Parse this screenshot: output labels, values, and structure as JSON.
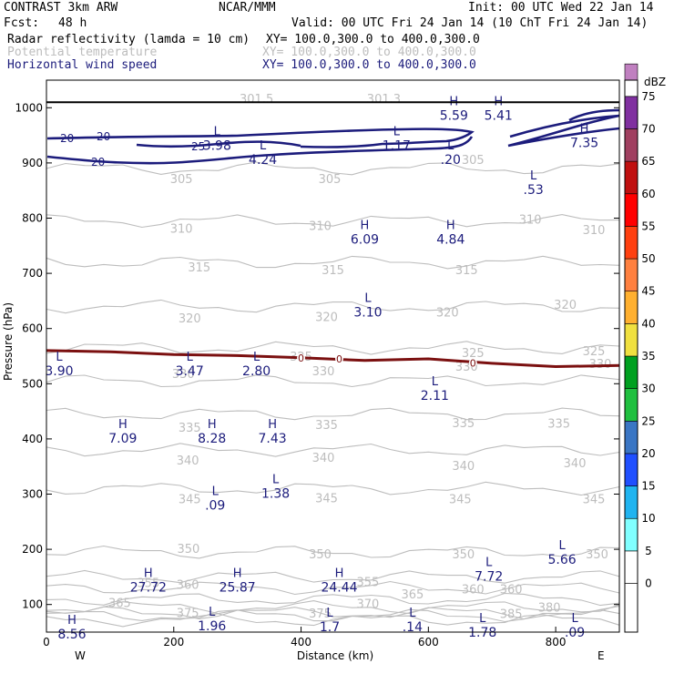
{
  "header": {
    "model": "CONTRAST  3km ARW",
    "org": "NCAR/MMM",
    "init": "Init: 00 UTC Wed 22 Jan 14",
    "fcst_label": "Fcst:",
    "fcst_value": "48 h",
    "valid": "Valid: 00 UTC Fri 24 Jan 14 (10 ChT Fri 24 Jan 14)",
    "fields": [
      {
        "name": "Radar reflectivity (lamda = 10 cm)",
        "xy": "XY= 100.0,300.0 to 400.0,300.0",
        "color": "#000000"
      },
      {
        "name": "Potential temperature",
        "xy": "XY= 100.0,300.0 to 400.0,300.0",
        "color": "#bdbdbd"
      },
      {
        "name": "Horizontal wind speed",
        "xy": "XY= 100.0,300.0 to 400.0,300.0",
        "color": "#1c1c7c"
      }
    ]
  },
  "chart_data": {
    "type": "contour cross-section",
    "xlabel": "Distance (km)",
    "ylabel": "Pressure (hPa)",
    "xlim": [
      0,
      900
    ],
    "ylim": [
      1050,
      50
    ],
    "x_ticks": [
      0,
      200,
      400,
      600,
      800
    ],
    "y_ticks": [
      100,
      200,
      300,
      400,
      500,
      600,
      700,
      800,
      900,
      1000
    ],
    "direction_labels": {
      "left": "W",
      "right": "E"
    },
    "colorbar": {
      "unit": "dBZ",
      "levels": [
        0,
        5,
        10,
        15,
        20,
        25,
        30,
        35,
        40,
        45,
        50,
        55,
        60,
        65,
        70,
        75
      ],
      "colors": [
        "#ffffff",
        "#80ffff",
        "#20b4f0",
        "#2050ff",
        "#3a76c4",
        "#20c040",
        "#00a020",
        "#f0e040",
        "#ffb030",
        "#ff8040",
        "#ff4010",
        "#ff0000",
        "#c01010",
        "#a04060",
        "#8030a0",
        "#c080c0"
      ]
    },
    "theta_isentropes": [
      {
        "value": 305,
        "p": 890
      },
      {
        "value": 310,
        "p": 795
      },
      {
        "value": 315,
        "p": 720
      },
      {
        "value": 320,
        "p": 640
      },
      {
        "value": 325,
        "p": 565
      },
      {
        "value": 330,
        "p": 505
      },
      {
        "value": 335,
        "p": 445
      },
      {
        "value": 340,
        "p": 380
      },
      {
        "value": 345,
        "p": 310
      },
      {
        "value": 350,
        "p": 195
      },
      {
        "value": 355,
        "p": 150
      },
      {
        "value": 360,
        "p": 130
      },
      {
        "value": 365,
        "p": 110
      },
      {
        "value": 370,
        "p": 95
      },
      {
        "value": 375,
        "p": 85
      },
      {
        "value": 380,
        "p": 80
      },
      {
        "value": 385,
        "p": 72
      }
    ],
    "theta_labels": [
      {
        "text": "305",
        "x": 212,
        "p": 870
      },
      {
        "text": "305",
        "x": 445,
        "p": 870
      },
      {
        "text": "305",
        "x": 670,
        "p": 905
      },
      {
        "text": "310",
        "x": 212,
        "p": 780
      },
      {
        "text": "310",
        "x": 430,
        "p": 785
      },
      {
        "text": "310",
        "x": 760,
        "p": 797
      },
      {
        "text": "310",
        "x": 860,
        "p": 778
      },
      {
        "text": "315",
        "x": 240,
        "p": 710
      },
      {
        "text": "315",
        "x": 450,
        "p": 705
      },
      {
        "text": "315",
        "x": 660,
        "p": 705
      },
      {
        "text": "320",
        "x": 225,
        "p": 618
      },
      {
        "text": "320",
        "x": 440,
        "p": 620
      },
      {
        "text": "320",
        "x": 630,
        "p": 628
      },
      {
        "text": "320",
        "x": 815,
        "p": 642
      },
      {
        "text": "325",
        "x": 400,
        "p": 548
      },
      {
        "text": "325",
        "x": 670,
        "p": 555
      },
      {
        "text": "325",
        "x": 860,
        "p": 558
      },
      {
        "text": "330",
        "x": 215,
        "p": 517
      },
      {
        "text": "330",
        "x": 435,
        "p": 522
      },
      {
        "text": "330",
        "x": 660,
        "p": 530
      },
      {
        "text": "330",
        "x": 870,
        "p": 535
      },
      {
        "text": "335",
        "x": 225,
        "p": 420
      },
      {
        "text": "335",
        "x": 440,
        "p": 425
      },
      {
        "text": "335",
        "x": 655,
        "p": 428
      },
      {
        "text": "335",
        "x": 805,
        "p": 427
      },
      {
        "text": "340",
        "x": 222,
        "p": 360
      },
      {
        "text": "340",
        "x": 435,
        "p": 365
      },
      {
        "text": "340",
        "x": 655,
        "p": 350
      },
      {
        "text": "340",
        "x": 830,
        "p": 355
      },
      {
        "text": "345",
        "x": 225,
        "p": 290
      },
      {
        "text": "345",
        "x": 440,
        "p": 292
      },
      {
        "text": "345",
        "x": 650,
        "p": 290
      },
      {
        "text": "345",
        "x": 860,
        "p": 290
      },
      {
        "text": "350",
        "x": 223,
        "p": 200
      },
      {
        "text": "350",
        "x": 430,
        "p": 190
      },
      {
        "text": "350",
        "x": 655,
        "p": 190
      },
      {
        "text": "350",
        "x": 865,
        "p": 190
      },
      {
        "text": "355",
        "x": 160,
        "p": 138
      },
      {
        "text": "355",
        "x": 505,
        "p": 140
      },
      {
        "text": "360",
        "x": 222,
        "p": 135
      },
      {
        "text": "360",
        "x": 670,
        "p": 127
      },
      {
        "text": "360",
        "x": 730,
        "p": 127
      },
      {
        "text": "365",
        "x": 115,
        "p": 102
      },
      {
        "text": "365",
        "x": 575,
        "p": 118
      },
      {
        "text": "370",
        "x": 505,
        "p": 100
      },
      {
        "text": "375",
        "x": 222,
        "p": 84
      },
      {
        "text": "375",
        "x": 430,
        "p": 83
      },
      {
        "text": "380",
        "x": 790,
        "p": 94
      },
      {
        "text": "385",
        "x": 730,
        "p": 82
      }
    ],
    "freezing_level": {
      "label": "0",
      "points": [
        [
          0,
          560
        ],
        [
          100,
          558
        ],
        [
          200,
          553
        ],
        [
          300,
          551
        ],
        [
          400,
          547
        ],
        [
          500,
          542
        ],
        [
          600,
          545
        ],
        [
          700,
          537
        ],
        [
          800,
          531
        ],
        [
          900,
          533
        ]
      ]
    },
    "wind_speed_contours": [
      {
        "label": "20",
        "value": 20
      },
      {
        "label": "20",
        "value": 20
      },
      {
        "label": "20",
        "value": 20
      },
      {
        "label": "25",
        "value": 25
      }
    ],
    "extrema": [
      {
        "type": "H",
        "value": "8.56",
        "x": 40,
        "p": 65
      },
      {
        "type": "L",
        "value": "1.96",
        "x": 260,
        "p": 80
      },
      {
        "type": "L",
        "value": "1.7",
        "x": 445,
        "p": 78
      },
      {
        "type": "L",
        "value": ".14",
        "x": 575,
        "p": 78
      },
      {
        "type": "L",
        "value": "1.78",
        "x": 685,
        "p": 68
      },
      {
        "type": "L",
        "value": ".09",
        "x": 830,
        "p": 68
      },
      {
        "type": "H",
        "value": "27.72",
        "x": 160,
        "p": 150
      },
      {
        "type": "H",
        "value": "25.87",
        "x": 300,
        "p": 150
      },
      {
        "type": "H",
        "value": "24.44",
        "x": 460,
        "p": 150
      },
      {
        "type": "L",
        "value": "7.72",
        "x": 695,
        "p": 170
      },
      {
        "type": "L",
        "value": "5.66",
        "x": 810,
        "p": 200
      },
      {
        "type": "L",
        "value": ".09",
        "x": 265,
        "p": 298
      },
      {
        "type": "L",
        "value": "1.38",
        "x": 360,
        "p": 320
      },
      {
        "type": "H",
        "value": "7.09",
        "x": 120,
        "p": 420
      },
      {
        "type": "H",
        "value": "8.28",
        "x": 260,
        "p": 420
      },
      {
        "type": "H",
        "value": "7.43",
        "x": 355,
        "p": 420
      },
      {
        "type": "L",
        "value": "2.11",
        "x": 610,
        "p": 497
      },
      {
        "type": "L",
        "value": "3.90",
        "x": 20,
        "p": 542
      },
      {
        "type": "L",
        "value": "3.47",
        "x": 225,
        "p": 542
      },
      {
        "type": "L",
        "value": "2.80",
        "x": 330,
        "p": 542
      },
      {
        "type": "L",
        "value": "3.10",
        "x": 505,
        "p": 648
      },
      {
        "type": "H",
        "value": "6.09",
        "x": 500,
        "p": 780
      },
      {
        "type": "H",
        "value": "4.84",
        "x": 635,
        "p": 780
      },
      {
        "type": "L",
        "value": ".53",
        "x": 765,
        "p": 870
      },
      {
        "type": "L",
        "value": "3.98",
        "x": 268,
        "p": 950
      },
      {
        "type": "L",
        "value": "4.24",
        "x": 340,
        "p": 925
      },
      {
        "type": "L",
        "value": "1.17",
        "x": 550,
        "p": 950
      },
      {
        "type": "L",
        "value": ".20",
        "x": 635,
        "p": 925
      },
      {
        "type": "H",
        "value": "7.35",
        "x": 845,
        "p": 955
      },
      {
        "type": "H",
        "value": "5.59",
        "x": 640,
        "p": 1005
      },
      {
        "type": "H",
        "value": "5.41",
        "x": 710,
        "p": 1005
      }
    ],
    "surface_theta_labels": [
      {
        "text": "301.5",
        "x": 330,
        "p": 1015
      },
      {
        "text": "301.3",
        "x": 530,
        "p": 1015
      }
    ]
  }
}
